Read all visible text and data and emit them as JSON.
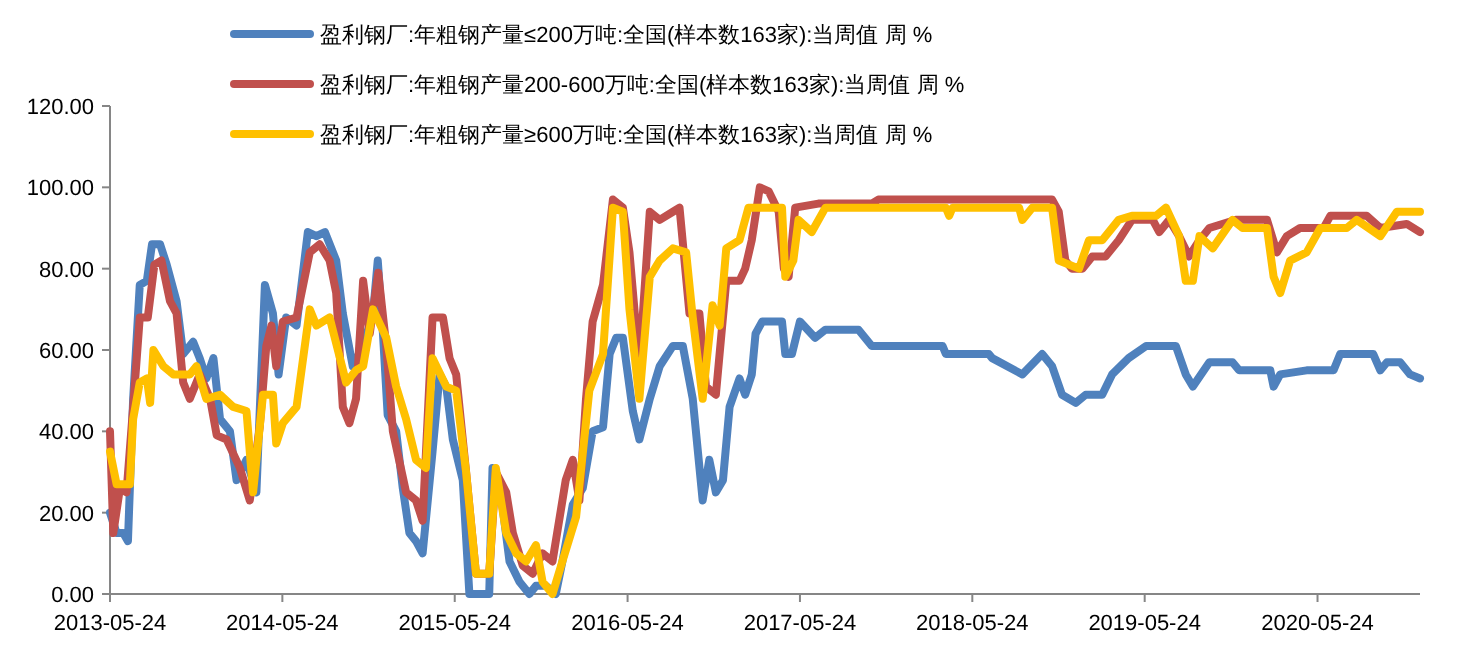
{
  "chart_data": {
    "type": "line",
    "series": [
      {
        "name": "盈利钢厂:年粗钢产量≤200万吨:全国(样本数163家):当周值 周 %",
        "color": "#4f81bd",
        "x": [
          "2013-05-24",
          "2013-06-07",
          "2013-06-21",
          "2013-07-01",
          "2013-07-12",
          "2013-07-26",
          "2013-08-10",
          "2013-08-21",
          "2013-09-07",
          "2013-09-21",
          "2013-10-12",
          "2013-10-26",
          "2013-11-16",
          "2013-11-30",
          "2013-12-14",
          "2013-12-29",
          "2014-01-12",
          "2014-02-02",
          "2014-02-16",
          "2014-03-09",
          "2014-03-30",
          "2014-04-17",
          "2014-05-04",
          "2014-05-16",
          "2014-06-01",
          "2014-06-23",
          "2014-07-17",
          "2014-08-04",
          "2014-08-22",
          "2014-09-15",
          "2014-09-29",
          "2014-10-20",
          "2014-11-11",
          "2014-12-02",
          "2014-12-12",
          "2014-12-23",
          "2015-01-02",
          "2015-01-20",
          "2015-02-03",
          "2015-02-17",
          "2015-03-03",
          "2015-03-17",
          "2015-04-07",
          "2015-04-22",
          "2015-05-06",
          "2015-05-20",
          "2015-06-10",
          "2015-06-24",
          "2015-08-05",
          "2015-08-12",
          "2015-08-26",
          "2015-09-17",
          "2015-10-08",
          "2015-10-29",
          "2015-11-12",
          "2015-12-03",
          "2015-12-24",
          "2016-01-07",
          "2016-01-29",
          "2016-02-19",
          "2016-03-11",
          "2016-04-02",
          "2016-04-16",
          "2016-04-30",
          "2016-05-14",
          "2016-06-04",
          "2016-06-18",
          "2016-07-10",
          "2016-07-31",
          "2016-08-28",
          "2016-09-18",
          "2016-10-09",
          "2016-10-30",
          "2016-11-13",
          "2016-11-27",
          "2016-12-12",
          "2016-12-26",
          "2017-01-16",
          "2017-01-28",
          "2017-02-11",
          "2017-02-19",
          "2017-03-05",
          "2017-04-16",
          "2017-04-23",
          "2017-05-07",
          "2017-05-24",
          "2017-06-25",
          "2017-07-17",
          "2017-09-25",
          "2017-10-23",
          "2018-03-22",
          "2018-03-29",
          "2018-06-28",
          "2018-07-05",
          "2018-09-07",
          "2018-10-19",
          "2018-11-09",
          "2018-11-30",
          "2018-12-29",
          "2019-01-19",
          "2019-02-23",
          "2019-03-16",
          "2019-04-20",
          "2019-05-27",
          "2019-07-29",
          "2019-08-19",
          "2019-09-03",
          "2019-10-08",
          "2019-11-26",
          "2019-12-10",
          "2020-02-14",
          "2020-02-21",
          "2020-03-06",
          "2020-05-01",
          "2020-06-27",
          "2020-07-11",
          "2020-09-19",
          "2020-10-04",
          "2020-10-18",
          "2020-11-15",
          "2020-12-06",
          "2020-12-27"
        ],
        "values": [
          20,
          15,
          15,
          13,
          48,
          76,
          77,
          86,
          86,
          81,
          72,
          59,
          62,
          58,
          53,
          58,
          43,
          40,
          28,
          33,
          25,
          76,
          69,
          54,
          68,
          66,
          89,
          88,
          89,
          82,
          69,
          56,
          61,
          69,
          82,
          64,
          44,
          40,
          26,
          15,
          13,
          10,
          35,
          54,
          51,
          38,
          28,
          0,
          0,
          31,
          28,
          8,
          3,
          0,
          2,
          2,
          0,
          8,
          22,
          26,
          40,
          41,
          59,
          63,
          63,
          45,
          38,
          48,
          56,
          61,
          61,
          48,
          23,
          33,
          25,
          28,
          46,
          53,
          49,
          54,
          64,
          67,
          67,
          59,
          59,
          67,
          63,
          65,
          65,
          61,
          61,
          59,
          59,
          58,
          54,
          59,
          56,
          49,
          47,
          49,
          49,
          54,
          58,
          61,
          61,
          54,
          51,
          57,
          57,
          55,
          55,
          51,
          54,
          55,
          55,
          59,
          59,
          55,
          57,
          57,
          54,
          53
        ]
      },
      {
        "name": "盈利钢厂:年粗钢产量200-600万吨:全国(样本数163家):当周值 周 %",
        "color": "#c0504d",
        "x": [
          "2013-05-24",
          "2013-05-31",
          "2013-06-14",
          "2013-06-28",
          "2013-07-12",
          "2013-07-26",
          "2013-08-12",
          "2013-08-26",
          "2013-09-10",
          "2013-09-28",
          "2013-10-12",
          "2013-10-26",
          "2013-11-09",
          "2013-11-30",
          "2013-12-22",
          "2014-01-05",
          "2014-01-26",
          "2014-02-23",
          "2014-03-16",
          "2014-04-06",
          "2014-04-20",
          "2014-05-01",
          "2014-05-11",
          "2014-05-25",
          "2014-06-23",
          "2014-07-21",
          "2014-08-11",
          "2014-09-01",
          "2014-09-15",
          "2014-09-29",
          "2014-10-13",
          "2014-10-27",
          "2014-11-11",
          "2014-11-25",
          "2014-12-13",
          "2014-12-30",
          "2015-01-13",
          "2015-02-10",
          "2015-03-03",
          "2015-03-17",
          "2015-04-07",
          "2015-04-29",
          "2015-05-13",
          "2015-05-27",
          "2015-06-17",
          "2015-07-08",
          "2015-08-05",
          "2015-08-19",
          "2015-09-10",
          "2015-09-24",
          "2015-10-15",
          "2015-11-05",
          "2015-11-26",
          "2015-12-17",
          "2016-01-14",
          "2016-01-29",
          "2016-02-12",
          "2016-02-26",
          "2016-03-11",
          "2016-04-02",
          "2016-04-23",
          "2016-05-14",
          "2016-05-28",
          "2016-06-18",
          "2016-07-10",
          "2016-07-31",
          "2016-08-28",
          "2016-09-11",
          "2016-10-02",
          "2016-10-23",
          "2016-11-06",
          "2016-11-27",
          "2016-12-19",
          "2017-01-16",
          "2017-01-28",
          "2017-02-11",
          "2017-02-28",
          "2017-03-19",
          "2017-04-09",
          "2017-04-20",
          "2017-04-30",
          "2017-05-14",
          "2017-07-02",
          "2017-10-23",
          "2017-11-06",
          "2018-10-26",
          "2018-11-09",
          "2018-11-23",
          "2018-12-07",
          "2018-12-21",
          "2019-01-12",
          "2019-02-02",
          "2019-03-02",
          "2019-03-30",
          "2019-04-27",
          "2019-06-10",
          "2019-06-24",
          "2019-07-15",
          "2019-08-05",
          "2019-08-26",
          "2019-09-17",
          "2019-10-08",
          "2019-12-03",
          "2020-02-07",
          "2020-02-28",
          "2020-03-20",
          "2020-04-17",
          "2020-06-06",
          "2020-06-20",
          "2020-09-05",
          "2020-10-04",
          "2020-11-29",
          "2020-12-27"
        ],
        "values": [
          40,
          15,
          26,
          25,
          46,
          68,
          68,
          81,
          82,
          72,
          69,
          52,
          48,
          54,
          48,
          39,
          38,
          31,
          23,
          41,
          61,
          66,
          56,
          67,
          68,
          84,
          86,
          82,
          74,
          46,
          42,
          48,
          77,
          64,
          79,
          61,
          40,
          25,
          23,
          18,
          68,
          68,
          58,
          54,
          30,
          5,
          5,
          30,
          25,
          15,
          7,
          5,
          10,
          8,
          28,
          33,
          23,
          48,
          67,
          76,
          97,
          95,
          84,
          56,
          94,
          92,
          94,
          95,
          69,
          69,
          51,
          49,
          77,
          77,
          80,
          87,
          100,
          99,
          94,
          80,
          78,
          95,
          96,
          96,
          97,
          97,
          97,
          94,
          82,
          80,
          80,
          83,
          83,
          87,
          92,
          92,
          89,
          92,
          88,
          83,
          87,
          90,
          92,
          92,
          84,
          88,
          90,
          90,
          93,
          93,
          90,
          91,
          89
        ]
      },
      {
        "name": "盈利钢厂:年粗钢产量≥600万吨:全国(样本数163家):当周值 周 %",
        "color": "#ffc000",
        "x": [
          "2013-05-24",
          "2013-06-07",
          "2013-07-05",
          "2013-07-12",
          "2013-07-26",
          "2013-08-10",
          "2013-08-17",
          "2013-08-24",
          "2013-09-14",
          "2013-10-05",
          "2013-11-09",
          "2013-11-23",
          "2013-12-14",
          "2014-01-12",
          "2014-02-09",
          "2014-03-09",
          "2014-03-23",
          "2014-04-13",
          "2014-05-04",
          "2014-05-11",
          "2014-05-25",
          "2014-06-23",
          "2014-07-21",
          "2014-08-04",
          "2014-09-01",
          "2014-10-06",
          "2014-10-27",
          "2014-11-11",
          "2014-12-02",
          "2014-12-30",
          "2015-01-20",
          "2015-02-10",
          "2015-03-03",
          "2015-03-24",
          "2015-04-07",
          "2015-05-06",
          "2015-05-27",
          "2015-06-17",
          "2015-07-08",
          "2015-08-05",
          "2015-08-19",
          "2015-09-10",
          "2015-10-01",
          "2015-10-22",
          "2015-11-12",
          "2015-11-26",
          "2015-12-17",
          "2016-01-07",
          "2016-02-05",
          "2016-03-04",
          "2016-04-02",
          "2016-04-23",
          "2016-05-14",
          "2016-05-28",
          "2016-06-18",
          "2016-07-10",
          "2016-07-31",
          "2016-08-28",
          "2016-09-25",
          "2016-10-09",
          "2016-10-30",
          "2016-11-20",
          "2016-12-05",
          "2016-12-19",
          "2017-01-16",
          "2017-02-04",
          "2017-04-16",
          "2017-04-23",
          "2017-05-10",
          "2017-05-21",
          "2017-06-18",
          "2017-07-17",
          "2018-03-29",
          "2018-04-05",
          "2018-04-12",
          "2018-08-31",
          "2018-09-07",
          "2018-09-28",
          "2018-11-09",
          "2018-11-23",
          "2019-01-05",
          "2019-01-26",
          "2019-02-23",
          "2019-03-30",
          "2019-04-27",
          "2019-06-17",
          "2019-07-08",
          "2019-08-05",
          "2019-08-19",
          "2019-09-03",
          "2019-09-17",
          "2019-10-15",
          "2019-11-26",
          "2019-12-17",
          "2020-02-07",
          "2020-02-21",
          "2020-03-06",
          "2020-03-27",
          "2020-05-01",
          "2020-05-30",
          "2020-07-25",
          "2020-08-15",
          "2020-10-04",
          "2020-11-08",
          "2020-12-27"
        ],
        "values": [
          35,
          27,
          27,
          43,
          52,
          53,
          47,
          60,
          56,
          54,
          54,
          56,
          48,
          49,
          46,
          45,
          25,
          49,
          49,
          37,
          42,
          46,
          70,
          66,
          68,
          52,
          55,
          56,
          70,
          63,
          51,
          43,
          33,
          31,
          58,
          51,
          50,
          30,
          5,
          5,
          31,
          15,
          10,
          8,
          12,
          3,
          0,
          8,
          19,
          50,
          59,
          95,
          94,
          70,
          48,
          78,
          82,
          85,
          84,
          68,
          48,
          71,
          66,
          85,
          87,
          95,
          95,
          78,
          82,
          92,
          89,
          95,
          95,
          93,
          95,
          95,
          92,
          95,
          95,
          82,
          80,
          87,
          87,
          92,
          93,
          93,
          95,
          88,
          77,
          77,
          88,
          85,
          92,
          90,
          90,
          78,
          74,
          82,
          84,
          90,
          90,
          92,
          88,
          94,
          94
        ]
      }
    ],
    "xlim": [
      "2013-05-24",
      "2020-12-27"
    ],
    "xticks": [
      "2013-05-24",
      "2014-05-24",
      "2015-05-24",
      "2016-05-24",
      "2017-05-24",
      "2018-05-24",
      "2019-05-24",
      "2020-05-24"
    ],
    "ylim": [
      0,
      120
    ],
    "yticks": [
      {
        "value": 0,
        "label": "0.00"
      },
      {
        "value": 20,
        "label": "20.00"
      },
      {
        "value": 40,
        "label": "40.00"
      },
      {
        "value": 60,
        "label": "60.00"
      },
      {
        "value": 80,
        "label": "80.00"
      },
      {
        "value": 100,
        "label": "100.00"
      },
      {
        "value": 120,
        "label": "120.00"
      }
    ],
    "legend": "top",
    "line_style": "solid"
  }
}
